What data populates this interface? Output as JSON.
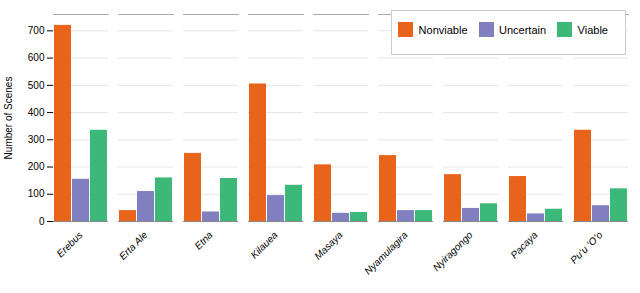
{
  "chart_data": {
    "type": "bar",
    "categories": [
      "Erebus",
      "Erta Ale",
      "Etna",
      "Kilauea",
      "Masaya",
      "Nyamulagira",
      "Nyiragongo",
      "Pacaya",
      "Puʻu ʻOʻo"
    ],
    "series": [
      {
        "name": "Nonviable",
        "color": "#E8641A",
        "values": [
          720,
          40,
          250,
          505,
          208,
          242,
          172,
          165,
          335
        ]
      },
      {
        "name": "Uncertain",
        "color": "#8080C0",
        "values": [
          155,
          110,
          35,
          95,
          30,
          40,
          48,
          28,
          58
        ]
      },
      {
        "name": "Viable",
        "color": "#3CB878",
        "values": [
          335,
          160,
          158,
          133,
          33,
          40,
          65,
          45,
          120
        ]
      }
    ],
    "ylabel": "Number of Scenes",
    "ylim": [
      0,
      760
    ],
    "yticks": [
      0,
      100,
      200,
      300,
      400,
      500,
      600,
      700
    ],
    "grid": true,
    "legend": "upper right"
  }
}
